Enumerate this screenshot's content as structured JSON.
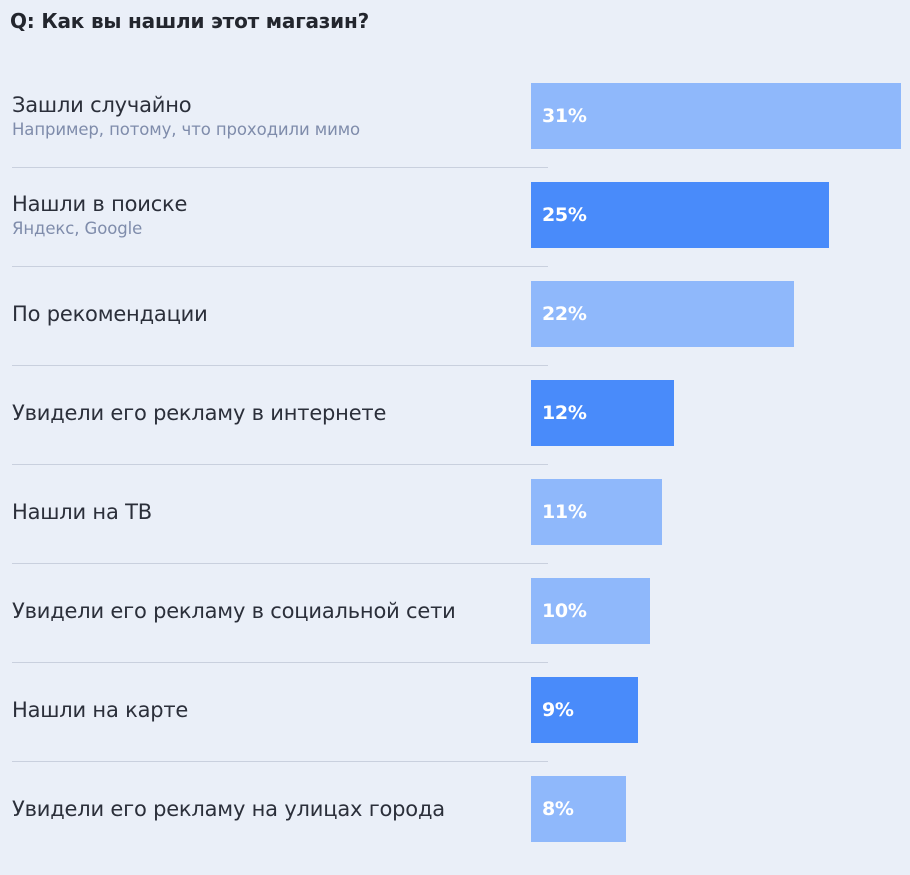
{
  "question": "Q: Как вы нашли этот магазин?",
  "colors": {
    "light": "#8fb8fb",
    "dark": "#498bfa"
  },
  "chart_data": {
    "type": "bar",
    "orientation": "horizontal",
    "title": "Q: Как вы нашли этот магазин?",
    "categories": [
      "Зашли случайно",
      "Нашли в поиске",
      "По рекомендации",
      "Увидели его рекламу в интернете",
      "Нашли на ТВ",
      "Увидели его рекламу в социальной сети",
      "Нашли на карте",
      "Увидели его рекламу на улицах города"
    ],
    "sublabels": [
      "Например, потому, что проходили мимо",
      "Яндекс, Google",
      "",
      "",
      "",
      "",
      "",
      ""
    ],
    "values": [
      31,
      25,
      22,
      12,
      11,
      10,
      9,
      8
    ],
    "value_labels": [
      "31%",
      "25%",
      "22%",
      "12%",
      "11%",
      "10%",
      "9%",
      "8%"
    ],
    "highlighted": [
      false,
      true,
      false,
      true,
      false,
      false,
      true,
      false
    ],
    "unit": "%",
    "xlim": [
      0,
      31
    ]
  }
}
